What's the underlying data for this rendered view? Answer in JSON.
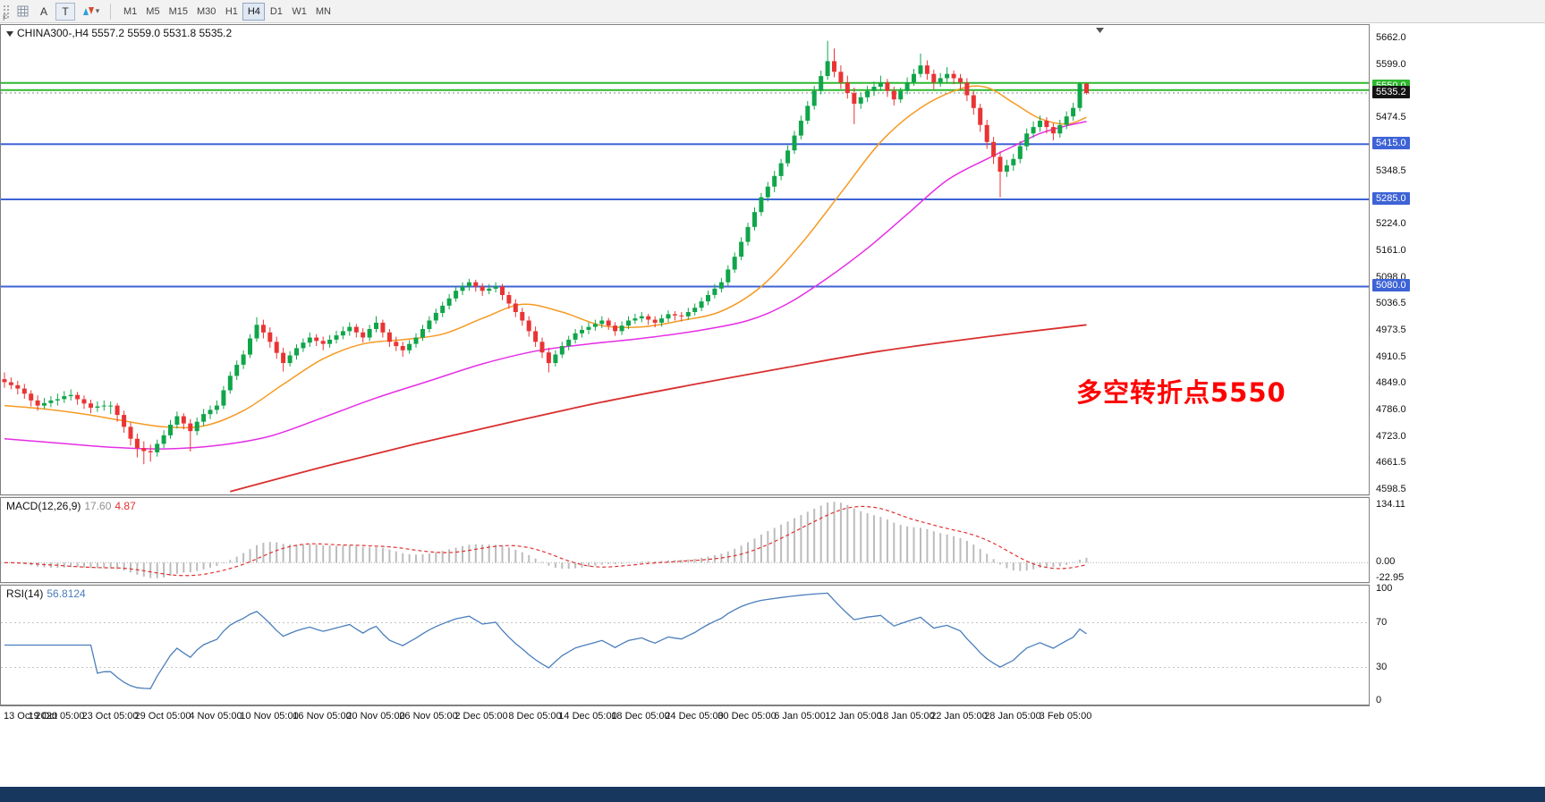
{
  "toolbar": {
    "grip_label": "F",
    "a_label": "A",
    "t_label": "T",
    "timeframes": [
      "M1",
      "M5",
      "M15",
      "M30",
      "H1",
      "H4",
      "D1",
      "W1",
      "MN"
    ],
    "active_timeframe": "H4"
  },
  "chart": {
    "title": "CHINA300-,H4 5557.2 5559.0 5531.8 5535.2",
    "annotation": {
      "text": "多空转折点5550",
      "color": "#ff0000"
    },
    "y_axis_ticks": [
      "5662.0",
      "5599.0",
      "5474.5",
      "5348.5",
      "5224.0",
      "5161.0",
      "5098.0",
      "5036.5",
      "4973.5",
      "4910.5",
      "4849.0",
      "4786.0",
      "4723.0",
      "4661.5",
      "4598.5"
    ],
    "price_badges": [
      {
        "text": "5550.0",
        "price": 5550.0,
        "bg": "#2eb82e"
      },
      {
        "text": "5535.2",
        "price": 5535.2,
        "bg": "#141414"
      },
      {
        "text": "5415.0",
        "price": 5415.0,
        "bg": "#3e63d6"
      },
      {
        "text": "5285.0",
        "price": 5285.0,
        "bg": "#3e63d6"
      },
      {
        "text": "5080.0",
        "price": 5080.0,
        "bg": "#3e63d6"
      }
    ],
    "colors": {
      "up": "#10a54a",
      "down": "#e93434",
      "ma_fast": "#f59a23",
      "ma_mid": "#e52ee5",
      "ma_slow": "#d93030"
    }
  },
  "chart_data": {
    "type": "candlestick",
    "symbol": "CHINA300-",
    "timeframe": "H4",
    "x_labels": [
      "13 Oct 2020",
      "19 Oct 05:00",
      "23 Oct 05:00",
      "29 Oct 05:00",
      "4 Nov 05:00",
      "10 Nov 05:00",
      "16 Nov 05:00",
      "20 Nov 05:00",
      "26 Nov 05:00",
      "2 Dec 05:00",
      "8 Dec 05:00",
      "14 Dec 05:00",
      "18 Dec 05:00",
      "24 Dec 05:00",
      "30 Dec 05:00",
      "6 Jan 05:00",
      "12 Jan 05:00",
      "18 Jan 05:00",
      "22 Jan 05:00",
      "28 Jan 05:00",
      "3 Feb 05:00"
    ],
    "x_label_step": 8,
    "y_range": {
      "top": 5695,
      "bottom": 4591
    },
    "candles": [
      [
        4862,
        4878,
        4842,
        4855
      ],
      [
        4855,
        4866,
        4838,
        4848
      ],
      [
        4848,
        4858,
        4826,
        4840
      ],
      [
        4840,
        4851,
        4816,
        4828
      ],
      [
        4828,
        4836,
        4798,
        4812
      ],
      [
        4812,
        4824,
        4788,
        4800
      ],
      [
        4800,
        4818,
        4792,
        4806
      ],
      [
        4806,
        4822,
        4796,
        4812
      ],
      [
        4812,
        4828,
        4800,
        4815
      ],
      [
        4815,
        4834,
        4806,
        4822
      ],
      [
        4822,
        4838,
        4812,
        4825
      ],
      [
        4825,
        4832,
        4802,
        4815
      ],
      [
        4815,
        4824,
        4792,
        4805
      ],
      [
        4805,
        4814,
        4782,
        4795
      ],
      [
        4795,
        4810,
        4785,
        4798
      ],
      [
        4798,
        4812,
        4788,
        4800
      ],
      [
        4800,
        4810,
        4780,
        4800
      ],
      [
        4800,
        4806,
        4762,
        4778
      ],
      [
        4778,
        4788,
        4736,
        4750
      ],
      [
        4750,
        4760,
        4706,
        4722
      ],
      [
        4722,
        4734,
        4678,
        4700
      ],
      [
        4700,
        4716,
        4662,
        4693
      ],
      [
        4693,
        4708,
        4668,
        4690
      ],
      [
        4690,
        4720,
        4680,
        4710
      ],
      [
        4710,
        4742,
        4700,
        4730
      ],
      [
        4730,
        4766,
        4722,
        4755
      ],
      [
        4755,
        4786,
        4746,
        4775
      ],
      [
        4775,
        4782,
        4744,
        4758
      ],
      [
        4758,
        4768,
        4692,
        4740
      ],
      [
        4740,
        4772,
        4730,
        4762
      ],
      [
        4762,
        4792,
        4752,
        4780
      ],
      [
        4780,
        4800,
        4768,
        4790
      ],
      [
        4790,
        4812,
        4780,
        4800
      ],
      [
        4800,
        4846,
        4792,
        4836
      ],
      [
        4836,
        4880,
        4828,
        4870
      ],
      [
        4870,
        4906,
        4860,
        4896
      ],
      [
        4896,
        4930,
        4886,
        4920
      ],
      [
        4920,
        4968,
        4912,
        4958
      ],
      [
        4958,
        5008,
        4950,
        4990
      ],
      [
        4990,
        5002,
        4958,
        4972
      ],
      [
        4972,
        4984,
        4936,
        4950
      ],
      [
        4950,
        4962,
        4910,
        4924
      ],
      [
        4924,
        4936,
        4880,
        4900
      ],
      [
        4900,
        4928,
        4892,
        4918
      ],
      [
        4918,
        4944,
        4908,
        4935
      ],
      [
        4935,
        4958,
        4926,
        4948
      ],
      [
        4948,
        4972,
        4938,
        4960
      ],
      [
        4960,
        4968,
        4940,
        4952
      ],
      [
        4952,
        4962,
        4930,
        4945
      ],
      [
        4945,
        4966,
        4936,
        4955
      ],
      [
        4955,
        4976,
        4946,
        4965
      ],
      [
        4965,
        4986,
        4956,
        4975
      ],
      [
        4975,
        4996,
        4964,
        4985
      ],
      [
        4985,
        4992,
        4960,
        4972
      ],
      [
        4972,
        4982,
        4948,
        4960
      ],
      [
        4960,
        4990,
        4952,
        4980
      ],
      [
        4980,
        5010,
        4972,
        4995
      ],
      [
        4995,
        5002,
        4960,
        4972
      ],
      [
        4972,
        4980,
        4938,
        4950
      ],
      [
        4950,
        4962,
        4928,
        4940
      ],
      [
        4940,
        4950,
        4915,
        4930
      ],
      [
        4930,
        4954,
        4922,
        4945
      ],
      [
        4945,
        4970,
        4936,
        4960
      ],
      [
        4960,
        4990,
        4952,
        4980
      ],
      [
        4980,
        5010,
        4972,
        5000
      ],
      [
        5000,
        5028,
        4992,
        5018
      ],
      [
        5018,
        5044,
        5008,
        5035
      ],
      [
        5035,
        5062,
        5026,
        5052
      ],
      [
        5052,
        5080,
        5044,
        5070
      ],
      [
        5070,
        5090,
        5060,
        5080
      ],
      [
        5080,
        5098,
        5070,
        5090
      ],
      [
        5090,
        5096,
        5068,
        5080
      ],
      [
        5080,
        5088,
        5058,
        5070
      ],
      [
        5070,
        5086,
        5062,
        5075
      ],
      [
        5075,
        5090,
        5066,
        5080
      ],
      [
        5080,
        5086,
        5048,
        5060
      ],
      [
        5060,
        5068,
        5028,
        5040
      ],
      [
        5040,
        5050,
        5008,
        5020
      ],
      [
        5020,
        5030,
        4988,
        5000
      ],
      [
        5000,
        5010,
        4962,
        4975
      ],
      [
        4975,
        4986,
        4938,
        4950
      ],
      [
        4950,
        4960,
        4912,
        4925
      ],
      [
        4925,
        4936,
        4878,
        4900
      ],
      [
        4900,
        4930,
        4892,
        4920
      ],
      [
        4920,
        4950,
        4912,
        4940
      ],
      [
        4940,
        4964,
        4930,
        4955
      ],
      [
        4955,
        4980,
        4946,
        4970
      ],
      [
        4970,
        4988,
        4960,
        4978
      ],
      [
        4978,
        4996,
        4968,
        4985
      ],
      [
        4985,
        5002,
        4976,
        4992
      ],
      [
        4992,
        5010,
        4982,
        5000
      ],
      [
        5000,
        5006,
        4978,
        4988
      ],
      [
        4988,
        4996,
        4964,
        4975
      ],
      [
        4975,
        4998,
        4966,
        4988
      ],
      [
        4988,
        5010,
        4980,
        5000
      ],
      [
        5000,
        5016,
        4992,
        5005
      ],
      [
        5005,
        5020,
        4996,
        5010
      ],
      [
        5010,
        5016,
        4990,
        5002
      ],
      [
        5002,
        5010,
        4984,
        4995
      ],
      [
        4995,
        5014,
        4986,
        5005
      ],
      [
        5005,
        5024,
        4996,
        5015
      ],
      [
        5015,
        5022,
        5000,
        5012
      ],
      [
        5012,
        5020,
        4998,
        5010
      ],
      [
        5010,
        5030,
        5002,
        5020
      ],
      [
        5020,
        5040,
        5012,
        5030
      ],
      [
        5030,
        5054,
        5022,
        5045
      ],
      [
        5045,
        5070,
        5036,
        5060
      ],
      [
        5060,
        5086,
        5052,
        5075
      ],
      [
        5075,
        5100,
        5066,
        5090
      ],
      [
        5090,
        5130,
        5082,
        5120
      ],
      [
        5120,
        5160,
        5112,
        5150
      ],
      [
        5150,
        5196,
        5142,
        5185
      ],
      [
        5185,
        5230,
        5176,
        5220
      ],
      [
        5220,
        5266,
        5212,
        5255
      ],
      [
        5255,
        5300,
        5246,
        5290
      ],
      [
        5290,
        5326,
        5280,
        5315
      ],
      [
        5315,
        5352,
        5302,
        5340
      ],
      [
        5340,
        5380,
        5330,
        5370
      ],
      [
        5370,
        5412,
        5362,
        5400
      ],
      [
        5400,
        5446,
        5392,
        5435
      ],
      [
        5435,
        5482,
        5426,
        5470
      ],
      [
        5470,
        5516,
        5462,
        5505
      ],
      [
        5505,
        5552,
        5496,
        5540
      ],
      [
        5540,
        5588,
        5532,
        5575
      ],
      [
        5575,
        5658,
        5566,
        5610
      ],
      [
        5610,
        5640,
        5572,
        5585
      ],
      [
        5585,
        5600,
        5545,
        5560
      ],
      [
        5560,
        5576,
        5522,
        5535
      ],
      [
        5535,
        5548,
        5462,
        5510
      ],
      [
        5510,
        5536,
        5498,
        5525
      ],
      [
        5525,
        5552,
        5514,
        5540
      ],
      [
        5540,
        5562,
        5528,
        5550
      ],
      [
        5550,
        5576,
        5540,
        5560
      ],
      [
        5560,
        5568,
        5526,
        5540
      ],
      [
        5540,
        5550,
        5506,
        5520
      ],
      [
        5520,
        5548,
        5512,
        5540
      ],
      [
        5540,
        5572,
        5532,
        5560
      ],
      [
        5560,
        5592,
        5552,
        5580
      ],
      [
        5580,
        5628,
        5572,
        5600
      ],
      [
        5600,
        5612,
        5566,
        5580
      ],
      [
        5580,
        5590,
        5544,
        5560
      ],
      [
        5560,
        5582,
        5550,
        5570
      ],
      [
        5570,
        5596,
        5560,
        5580
      ],
      [
        5580,
        5588,
        5556,
        5570
      ],
      [
        5570,
        5580,
        5544,
        5560
      ],
      [
        5560,
        5570,
        5516,
        5530
      ],
      [
        5530,
        5540,
        5484,
        5500
      ],
      [
        5500,
        5510,
        5444,
        5460
      ],
      [
        5460,
        5472,
        5404,
        5420
      ],
      [
        5420,
        5432,
        5368,
        5385
      ],
      [
        5385,
        5398,
        5290,
        5350
      ],
      [
        5350,
        5378,
        5338,
        5365
      ],
      [
        5365,
        5392,
        5352,
        5380
      ],
      [
        5380,
        5422,
        5370,
        5410
      ],
      [
        5410,
        5452,
        5400,
        5440
      ],
      [
        5440,
        5468,
        5430,
        5455
      ],
      [
        5455,
        5482,
        5444,
        5470
      ],
      [
        5470,
        5478,
        5440,
        5455
      ],
      [
        5455,
        5464,
        5424,
        5440
      ],
      [
        5440,
        5472,
        5430,
        5460
      ],
      [
        5460,
        5492,
        5450,
        5480
      ],
      [
        5480,
        5512,
        5470,
        5500
      ],
      [
        5500,
        5560,
        5492,
        5557
      ],
      [
        5557.2,
        5559.0,
        5531.8,
        5535.2
      ]
    ],
    "ma_lines": [
      {
        "name": "fast",
        "color": "#f59a23",
        "points": [
          [
            0,
            4800
          ],
          [
            6,
            4792
          ],
          [
            12,
            4780
          ],
          [
            18,
            4764
          ],
          [
            24,
            4750
          ],
          [
            30,
            4752
          ],
          [
            36,
            4788
          ],
          [
            42,
            4850
          ],
          [
            48,
            4910
          ],
          [
            54,
            4945
          ],
          [
            60,
            4955
          ],
          [
            66,
            4968
          ],
          [
            72,
            5005
          ],
          [
            78,
            5038
          ],
          [
            84,
            5020
          ],
          [
            90,
            4988
          ],
          [
            96,
            4985
          ],
          [
            102,
            5000
          ],
          [
            108,
            5022
          ],
          [
            114,
            5080
          ],
          [
            120,
            5180
          ],
          [
            126,
            5300
          ],
          [
            132,
            5420
          ],
          [
            138,
            5500
          ],
          [
            144,
            5545
          ],
          [
            148,
            5548
          ],
          [
            152,
            5512
          ],
          [
            156,
            5475
          ],
          [
            160,
            5462
          ],
          [
            163,
            5478
          ]
        ]
      },
      {
        "name": "mid",
        "color": "#e52ee5",
        "points": [
          [
            0,
            4722
          ],
          [
            8,
            4712
          ],
          [
            16,
            4702
          ],
          [
            24,
            4698
          ],
          [
            32,
            4706
          ],
          [
            40,
            4728
          ],
          [
            48,
            4772
          ],
          [
            56,
            4818
          ],
          [
            64,
            4858
          ],
          [
            72,
            4898
          ],
          [
            80,
            4928
          ],
          [
            88,
            4945
          ],
          [
            96,
            4958
          ],
          [
            104,
            4975
          ],
          [
            112,
            5000
          ],
          [
            118,
            5040
          ],
          [
            124,
            5100
          ],
          [
            130,
            5170
          ],
          [
            136,
            5250
          ],
          [
            142,
            5330
          ],
          [
            148,
            5380
          ],
          [
            152,
            5410
          ],
          [
            156,
            5440
          ],
          [
            160,
            5458
          ],
          [
            163,
            5468
          ]
        ]
      },
      {
        "name": "slow",
        "color": "#d93030",
        "points": [
          [
            34,
            4598
          ],
          [
            48,
            4656
          ],
          [
            62,
            4710
          ],
          [
            76,
            4760
          ],
          [
            90,
            4808
          ],
          [
            104,
            4850
          ],
          [
            118,
            4890
          ],
          [
            132,
            4928
          ],
          [
            148,
            4962
          ],
          [
            163,
            4990
          ]
        ]
      }
    ],
    "h_lines": [
      {
        "price": 5559,
        "color": "#2eb82e",
        "width": 2
      },
      {
        "price": 5542,
        "color": "#2eb82e",
        "width": 2
      },
      {
        "price": 5415,
        "color": "#3e63d6",
        "width": 2
      },
      {
        "price": 5285,
        "color": "#3e63d6",
        "width": 2
      },
      {
        "price": 5080,
        "color": "#3e63d6",
        "width": 2
      }
    ],
    "current_price": {
      "price": 5535.2,
      "line_color": "#888888"
    }
  },
  "macd": {
    "label": "MACD(12,26,9)",
    "main_value": "17.60",
    "signal_value": "4.87",
    "scale": [
      "134.11",
      "0.00",
      "-22.95"
    ],
    "fast": 12,
    "slow": 26,
    "smoothing": 9,
    "histogram_color": "#bcbcbc",
    "signal_color": "#e03030"
  },
  "rsi": {
    "label": "RSI(14)",
    "value": "56.8124",
    "period": 14,
    "scale_levels": [
      "100",
      "70",
      "30",
      "0"
    ],
    "line_color": "#4a7ebb"
  }
}
